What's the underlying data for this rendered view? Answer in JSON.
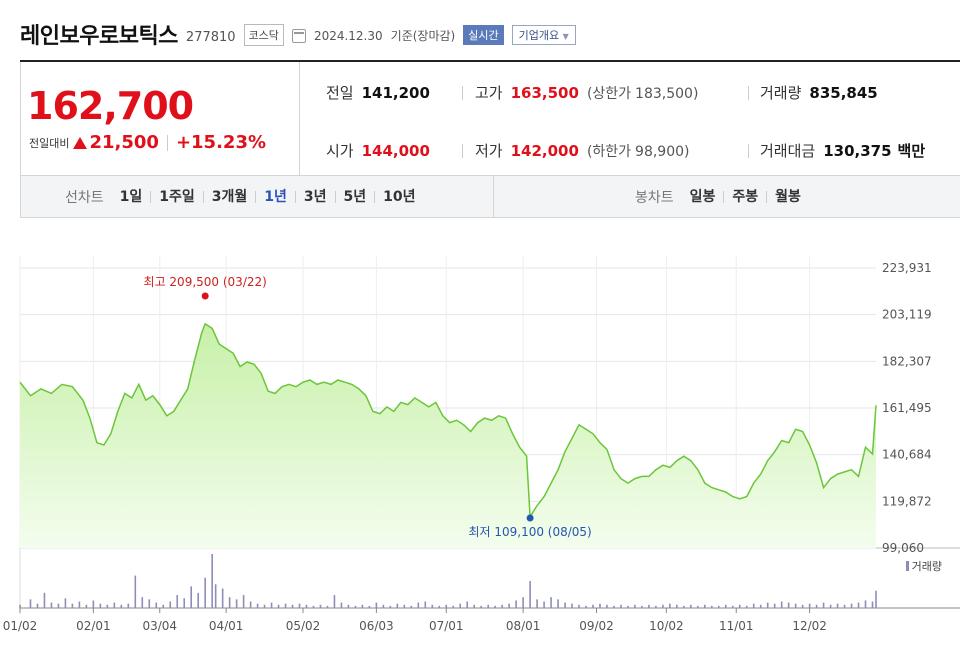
{
  "header": {
    "company": "레인보우로보틱스",
    "code": "277810",
    "market": "코스닥",
    "date": "2024.12.30",
    "date_suffix": "기준(장마감)",
    "live_label": "실시간",
    "corp_label": "기업개요"
  },
  "quote": {
    "price": "162,700",
    "change_label": "전일대비",
    "change": "21,500",
    "change_pct": "+15.23%",
    "prev_label": "전일",
    "prev": "141,200",
    "high_label": "고가",
    "high": "163,500",
    "upper_label": "(상한가",
    "upper": "183,500)",
    "volume_label": "거래량",
    "volume": "835,845",
    "open_label": "시가",
    "open": "144,000",
    "low_label": "저가",
    "low": "142,000",
    "lower_label": "(하한가",
    "lower": "98,900)",
    "amount_label": "거래대금",
    "amount": "130,375",
    "amount_unit": "백만"
  },
  "tabs": {
    "line_title": "선차트",
    "line_items": [
      "1일",
      "1주일",
      "3개월",
      "1년",
      "3년",
      "5년",
      "10년"
    ],
    "line_active": 3,
    "candle_title": "봉차트",
    "candle_items": [
      "일봉",
      "주봉",
      "월봉"
    ]
  },
  "colors": {
    "up": "#e0101a",
    "line": "#6bc63a",
    "fill_top": "#c7f0a8",
    "fill_bottom": "#f4fdee",
    "volume": "#8d8db8",
    "low": "#2456b0"
  },
  "chart_data": {
    "type": "area",
    "y_ticks": [
      "223,931",
      "203,119",
      "182,307",
      "161,495",
      "140,684",
      "119,872",
      "99,060"
    ],
    "ylim": [
      99060,
      223931
    ],
    "x_ticks": [
      "01/02",
      "02/01",
      "03/04",
      "04/01",
      "05/02",
      "06/03",
      "07/01",
      "08/01",
      "09/02",
      "10/02",
      "11/01",
      "12/02"
    ],
    "x_tick_index": [
      0,
      21,
      40,
      59,
      81,
      102,
      122,
      144,
      165,
      185,
      205,
      226
    ],
    "n_days": 245,
    "high_label": "최고 209,500 (03/22)",
    "low_label": "최저 109,100 (08/05)",
    "high_index": 53,
    "low_index": 146,
    "price": [
      [
        0,
        173000
      ],
      [
        3,
        167000
      ],
      [
        6,
        170000
      ],
      [
        9,
        168000
      ],
      [
        12,
        172000
      ],
      [
        15,
        171000
      ],
      [
        18,
        165000
      ],
      [
        20,
        157000
      ],
      [
        22,
        146000
      ],
      [
        24,
        145000
      ],
      [
        26,
        150000
      ],
      [
        28,
        160000
      ],
      [
        30,
        168000
      ],
      [
        32,
        166000
      ],
      [
        34,
        172000
      ],
      [
        36,
        165000
      ],
      [
        38,
        167000
      ],
      [
        40,
        163000
      ],
      [
        42,
        158000
      ],
      [
        44,
        160000
      ],
      [
        46,
        165000
      ],
      [
        48,
        170000
      ],
      [
        50,
        183000
      ],
      [
        52,
        195000
      ],
      [
        53,
        199000
      ],
      [
        55,
        197000
      ],
      [
        57,
        190000
      ],
      [
        59,
        188000
      ],
      [
        61,
        186000
      ],
      [
        63,
        180000
      ],
      [
        65,
        182000
      ],
      [
        67,
        181000
      ],
      [
        69,
        177000
      ],
      [
        71,
        169000
      ],
      [
        73,
        168000
      ],
      [
        75,
        171000
      ],
      [
        77,
        172000
      ],
      [
        79,
        171000
      ],
      [
        81,
        173000
      ],
      [
        83,
        174000
      ],
      [
        85,
        172000
      ],
      [
        87,
        173000
      ],
      [
        89,
        172000
      ],
      [
        91,
        174000
      ],
      [
        93,
        173000
      ],
      [
        95,
        172000
      ],
      [
        97,
        170000
      ],
      [
        99,
        167000
      ],
      [
        101,
        160000
      ],
      [
        103,
        159000
      ],
      [
        105,
        162000
      ],
      [
        107,
        160000
      ],
      [
        109,
        164000
      ],
      [
        111,
        163000
      ],
      [
        113,
        166000
      ],
      [
        115,
        164000
      ],
      [
        117,
        162000
      ],
      [
        119,
        164000
      ],
      [
        121,
        158000
      ],
      [
        123,
        155000
      ],
      [
        125,
        156000
      ],
      [
        127,
        154000
      ],
      [
        129,
        151000
      ],
      [
        131,
        155000
      ],
      [
        133,
        157000
      ],
      [
        135,
        156000
      ],
      [
        137,
        158000
      ],
      [
        139,
        157000
      ],
      [
        141,
        150000
      ],
      [
        143,
        144000
      ],
      [
        145,
        140000
      ],
      [
        146,
        113000
      ],
      [
        148,
        118000
      ],
      [
        150,
        122000
      ],
      [
        152,
        128000
      ],
      [
        154,
        134000
      ],
      [
        156,
        142000
      ],
      [
        158,
        148000
      ],
      [
        160,
        154000
      ],
      [
        162,
        152000
      ],
      [
        164,
        150000
      ],
      [
        166,
        146000
      ],
      [
        168,
        143000
      ],
      [
        170,
        134000
      ],
      [
        172,
        130000
      ],
      [
        174,
        128000
      ],
      [
        176,
        130000
      ],
      [
        178,
        131000
      ],
      [
        180,
        131000
      ],
      [
        182,
        134000
      ],
      [
        184,
        136000
      ],
      [
        186,
        135000
      ],
      [
        188,
        138000
      ],
      [
        190,
        140000
      ],
      [
        192,
        138000
      ],
      [
        194,
        134000
      ],
      [
        196,
        128000
      ],
      [
        198,
        126000
      ],
      [
        200,
        125000
      ],
      [
        202,
        124000
      ],
      [
        204,
        122000
      ],
      [
        206,
        121000
      ],
      [
        208,
        122000
      ],
      [
        210,
        128000
      ],
      [
        212,
        132000
      ],
      [
        214,
        138000
      ],
      [
        216,
        142000
      ],
      [
        218,
        147000
      ],
      [
        220,
        146000
      ],
      [
        222,
        152000
      ],
      [
        224,
        151000
      ],
      [
        226,
        145000
      ],
      [
        228,
        137000
      ],
      [
        230,
        126000
      ],
      [
        232,
        130000
      ],
      [
        234,
        132000
      ],
      [
        236,
        133000
      ],
      [
        238,
        134000
      ],
      [
        240,
        131000
      ],
      [
        242,
        144000
      ],
      [
        244,
        141000
      ],
      [
        245,
        162700
      ]
    ],
    "volume": [
      [
        0,
        3
      ],
      [
        3,
        8
      ],
      [
        5,
        4
      ],
      [
        7,
        14
      ],
      [
        9,
        5
      ],
      [
        11,
        4
      ],
      [
        13,
        9
      ],
      [
        15,
        4
      ],
      [
        17,
        6
      ],
      [
        19,
        3
      ],
      [
        21,
        7
      ],
      [
        23,
        4
      ],
      [
        25,
        3
      ],
      [
        27,
        5
      ],
      [
        29,
        3
      ],
      [
        31,
        4
      ],
      [
        33,
        30
      ],
      [
        35,
        10
      ],
      [
        37,
        8
      ],
      [
        39,
        5
      ],
      [
        41,
        3
      ],
      [
        43,
        6
      ],
      [
        45,
        12
      ],
      [
        47,
        9
      ],
      [
        49,
        20
      ],
      [
        51,
        14
      ],
      [
        53,
        28
      ],
      [
        55,
        50
      ],
      [
        56,
        22
      ],
      [
        58,
        18
      ],
      [
        60,
        10
      ],
      [
        62,
        8
      ],
      [
        64,
        12
      ],
      [
        66,
        6
      ],
      [
        68,
        4
      ],
      [
        70,
        3
      ],
      [
        72,
        5
      ],
      [
        74,
        3
      ],
      [
        76,
        4
      ],
      [
        78,
        3
      ],
      [
        80,
        4
      ],
      [
        82,
        3
      ],
      [
        84,
        2
      ],
      [
        86,
        3
      ],
      [
        88,
        2
      ],
      [
        90,
        12
      ],
      [
        92,
        5
      ],
      [
        94,
        3
      ],
      [
        96,
        2
      ],
      [
        98,
        3
      ],
      [
        100,
        2
      ],
      [
        102,
        5
      ],
      [
        104,
        3
      ],
      [
        106,
        2
      ],
      [
        108,
        4
      ],
      [
        110,
        3
      ],
      [
        112,
        2
      ],
      [
        114,
        5
      ],
      [
        116,
        6
      ],
      [
        118,
        3
      ],
      [
        120,
        2
      ],
      [
        122,
        3
      ],
      [
        124,
        2
      ],
      [
        126,
        4
      ],
      [
        128,
        6
      ],
      [
        130,
        3
      ],
      [
        132,
        2
      ],
      [
        134,
        3
      ],
      [
        136,
        2
      ],
      [
        138,
        3
      ],
      [
        140,
        4
      ],
      [
        142,
        7
      ],
      [
        144,
        10
      ],
      [
        146,
        25
      ],
      [
        148,
        8
      ],
      [
        150,
        6
      ],
      [
        152,
        10
      ],
      [
        154,
        8
      ],
      [
        156,
        5
      ],
      [
        158,
        4
      ],
      [
        160,
        3
      ],
      [
        162,
        2
      ],
      [
        164,
        3
      ],
      [
        166,
        4
      ],
      [
        168,
        3
      ],
      [
        170,
        2
      ],
      [
        172,
        3
      ],
      [
        174,
        2
      ],
      [
        176,
        3
      ],
      [
        178,
        2
      ],
      [
        180,
        3
      ],
      [
        182,
        2
      ],
      [
        184,
        3
      ],
      [
        186,
        4
      ],
      [
        188,
        3
      ],
      [
        190,
        2
      ],
      [
        192,
        3
      ],
      [
        194,
        2
      ],
      [
        196,
        3
      ],
      [
        198,
        2
      ],
      [
        200,
        2
      ],
      [
        202,
        3
      ],
      [
        204,
        2
      ],
      [
        206,
        3
      ],
      [
        208,
        2
      ],
      [
        210,
        4
      ],
      [
        212,
        3
      ],
      [
        214,
        5
      ],
      [
        216,
        4
      ],
      [
        218,
        6
      ],
      [
        220,
        5
      ],
      [
        222,
        4
      ],
      [
        224,
        3
      ],
      [
        226,
        4
      ],
      [
        228,
        3
      ],
      [
        230,
        5
      ],
      [
        232,
        3
      ],
      [
        234,
        4
      ],
      [
        236,
        3
      ],
      [
        238,
        4
      ],
      [
        240,
        5
      ],
      [
        242,
        7
      ],
      [
        244,
        6
      ],
      [
        245,
        16
      ]
    ],
    "volume_legend": "거래량"
  }
}
